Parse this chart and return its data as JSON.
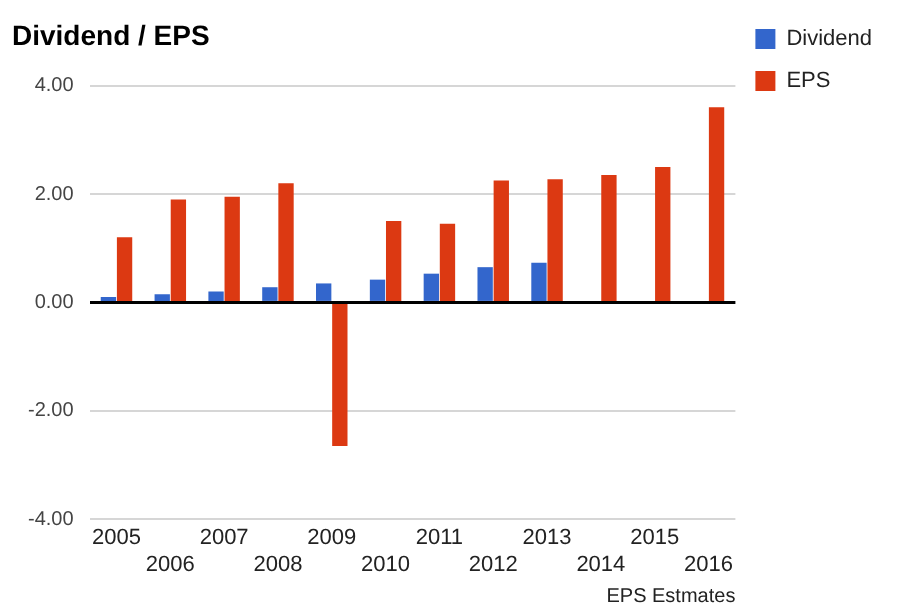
{
  "chart_data": {
    "type": "bar",
    "title": "Dividend / EPS",
    "xlabel": "EPS Estmates",
    "categories": [
      "2005",
      "2006",
      "2007",
      "2008",
      "2009",
      "2010",
      "2011",
      "2012",
      "2013",
      "2014",
      "2015",
      "2016"
    ],
    "series": [
      {
        "name": "Dividend",
        "color": "#3366cc",
        "values": [
          0.1,
          0.15,
          0.2,
          0.28,
          0.35,
          0.42,
          0.53,
          0.65,
          0.73,
          null,
          null,
          null
        ]
      },
      {
        "name": "EPS",
        "color": "#dc3912",
        "values": [
          1.2,
          1.9,
          1.95,
          2.2,
          -2.65,
          1.5,
          1.45,
          2.25,
          2.27,
          2.35,
          2.5,
          3.6
        ]
      }
    ],
    "ylim": [
      -4,
      4
    ],
    "yticks": [
      {
        "value": -4,
        "label": "-4.00"
      },
      {
        "value": -2,
        "label": "-2.00"
      },
      {
        "value": 0,
        "label": "0.00"
      },
      {
        "value": 2,
        "label": "2.00"
      },
      {
        "value": 4,
        "label": "4.00"
      }
    ],
    "grid": "y",
    "legend": "right"
  }
}
